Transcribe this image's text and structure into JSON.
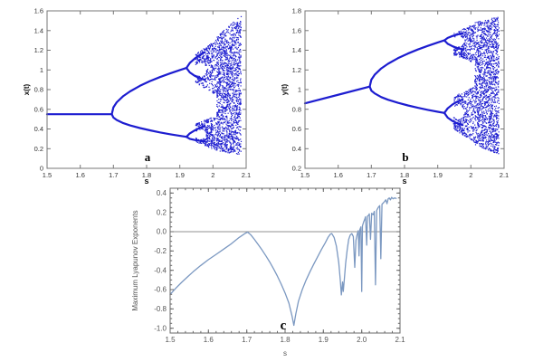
{
  "figure": {
    "background": "#ffffff",
    "description": "Bifurcation diagrams of x(t) and y(t) versus parameter s, and maximum Lyapunov exponents versus s"
  },
  "chart_data": [
    {
      "id": "a",
      "type": "bifurcation",
      "label": "a",
      "xlabel": "s",
      "ylabel": "x(t)",
      "x_range": [
        1.5,
        2.1
      ],
      "y_range": [
        0,
        1.6
      ],
      "xticks": [
        {
          "v": 1.5,
          "l": "1.5"
        },
        {
          "v": 1.6,
          "l": "1.6"
        },
        {
          "v": 1.7,
          "l": "1.7"
        },
        {
          "v": 1.8,
          "l": "1.8"
        },
        {
          "v": 1.9,
          "l": "1.9"
        },
        {
          "v": 2.0,
          "l": "2"
        },
        {
          "v": 2.1,
          "l": "2.1"
        }
      ],
      "yticks": [
        {
          "v": 0,
          "l": "0"
        },
        {
          "v": 0.2,
          "l": "0.2"
        },
        {
          "v": 0.4,
          "l": "0.4"
        },
        {
          "v": 0.6,
          "l": "0.6"
        },
        {
          "v": 0.8,
          "l": "0.8"
        },
        {
          "v": 1.0,
          "l": "1"
        },
        {
          "v": 1.2,
          "l": "1.2"
        },
        {
          "v": 1.4,
          "l": "1.4"
        },
        {
          "v": 1.6,
          "l": "1.6"
        }
      ],
      "color": "#1d1dd0",
      "frame_color": "#777777",
      "seed": 7,
      "branches": [
        [
          [
            1.5,
            0.55
          ],
          [
            1.695,
            0.55
          ]
        ],
        [
          [
            1.695,
            0.55
          ],
          [
            1.7,
            0.62
          ],
          [
            1.71,
            0.671
          ],
          [
            1.73,
            0.735
          ],
          [
            1.75,
            0.782
          ],
          [
            1.78,
            0.839
          ],
          [
            1.81,
            0.886
          ],
          [
            1.84,
            0.927
          ],
          [
            1.87,
            0.964
          ],
          [
            1.9,
            0.999
          ],
          [
            1.92,
            1.02
          ]
        ],
        [
          [
            1.695,
            0.55
          ],
          [
            1.7,
            0.516
          ],
          [
            1.71,
            0.491
          ],
          [
            1.73,
            0.459
          ],
          [
            1.75,
            0.436
          ],
          [
            1.78,
            0.409
          ],
          [
            1.81,
            0.386
          ],
          [
            1.84,
            0.365
          ],
          [
            1.87,
            0.347
          ],
          [
            1.9,
            0.33
          ],
          [
            1.92,
            0.32
          ]
        ],
        [
          [
            1.92,
            1.02
          ],
          [
            1.93,
            1.07
          ],
          [
            1.945,
            1.115
          ],
          [
            1.96,
            1.15
          ],
          [
            1.975,
            1.18
          ]
        ],
        [
          [
            1.92,
            1.02
          ],
          [
            1.93,
            0.975
          ],
          [
            1.945,
            0.94
          ],
          [
            1.96,
            0.915
          ],
          [
            1.975,
            0.9
          ]
        ],
        [
          [
            1.92,
            0.32
          ],
          [
            1.93,
            0.355
          ],
          [
            1.945,
            0.385
          ],
          [
            1.96,
            0.41
          ],
          [
            1.975,
            0.43
          ]
        ],
        [
          [
            1.92,
            0.32
          ],
          [
            1.93,
            0.3
          ],
          [
            1.945,
            0.288
          ],
          [
            1.96,
            0.28
          ],
          [
            1.975,
            0.272
          ]
        ]
      ],
      "chaos_bands": [
        {
          "s0": 1.948,
          "s1": 2.012,
          "bot0": 0.87,
          "bot1": 0.74,
          "top0": 1.16,
          "top1": 1.31,
          "n": 420
        },
        {
          "s0": 1.948,
          "s1": 2.012,
          "bot0": 0.265,
          "bot1": 0.18,
          "top0": 0.45,
          "top1": 0.54,
          "n": 380
        },
        {
          "s0": 2.012,
          "s1": 2.085,
          "bot0": 0.17,
          "bot1": 0.14,
          "top0": 1.34,
          "top1": 1.56,
          "n": 1500
        }
      ],
      "eyes": [
        {
          "cx": 1.963,
          "cy": 1.005,
          "rx": 0.017,
          "ry": 0.07
        },
        {
          "cx": 1.963,
          "cy": 0.345,
          "rx": 0.017,
          "ry": 0.05
        }
      ]
    },
    {
      "id": "b",
      "type": "bifurcation",
      "label": "b",
      "xlabel": "s",
      "ylabel": "y(t)",
      "x_range": [
        1.5,
        2.1
      ],
      "y_range": [
        0.2,
        1.8
      ],
      "xticks": [
        {
          "v": 1.5,
          "l": "1.5"
        },
        {
          "v": 1.6,
          "l": "1.6"
        },
        {
          "v": 1.7,
          "l": "1.7"
        },
        {
          "v": 1.8,
          "l": "1.8"
        },
        {
          "v": 1.9,
          "l": "1.9"
        },
        {
          "v": 2.0,
          "l": "2"
        },
        {
          "v": 2.1,
          "l": "2.1"
        }
      ],
      "yticks": [
        {
          "v": 0.2,
          "l": "0.2"
        },
        {
          "v": 0.4,
          "l": "0.4"
        },
        {
          "v": 0.6,
          "l": "0.6"
        },
        {
          "v": 0.8,
          "l": "0.8"
        },
        {
          "v": 1.0,
          "l": "1"
        },
        {
          "v": 1.2,
          "l": "1.2"
        },
        {
          "v": 1.4,
          "l": "1.4"
        },
        {
          "v": 1.6,
          "l": "1.6"
        },
        {
          "v": 1.8,
          "l": "1.8"
        }
      ],
      "color": "#1d1dd0",
      "frame_color": "#777777",
      "seed": 13,
      "branches": [
        [
          [
            1.5,
            0.86
          ],
          [
            1.695,
            1.03
          ]
        ],
        [
          [
            1.695,
            1.03
          ],
          [
            1.7,
            1.1
          ],
          [
            1.71,
            1.151
          ],
          [
            1.73,
            1.215
          ],
          [
            1.75,
            1.262
          ],
          [
            1.78,
            1.319
          ],
          [
            1.81,
            1.366
          ],
          [
            1.84,
            1.407
          ],
          [
            1.87,
            1.444
          ],
          [
            1.9,
            1.479
          ],
          [
            1.92,
            1.5
          ]
        ],
        [
          [
            1.695,
            1.03
          ],
          [
            1.7,
            0.99
          ],
          [
            1.71,
            0.961
          ],
          [
            1.73,
            0.924
          ],
          [
            1.75,
            0.897
          ],
          [
            1.78,
            0.866
          ],
          [
            1.81,
            0.839
          ],
          [
            1.84,
            0.815
          ],
          [
            1.87,
            0.794
          ],
          [
            1.9,
            0.775
          ],
          [
            1.92,
            0.763
          ]
        ],
        [
          [
            1.92,
            1.5
          ],
          [
            1.93,
            1.525
          ],
          [
            1.945,
            1.545
          ],
          [
            1.96,
            1.56
          ],
          [
            1.975,
            1.57
          ]
        ],
        [
          [
            1.92,
            1.5
          ],
          [
            1.93,
            1.465
          ],
          [
            1.945,
            1.44
          ],
          [
            1.96,
            1.42
          ],
          [
            1.975,
            1.41
          ]
        ],
        [
          [
            1.92,
            0.763
          ],
          [
            1.93,
            0.81
          ],
          [
            1.945,
            0.85
          ],
          [
            1.96,
            0.88
          ],
          [
            1.975,
            0.9
          ]
        ],
        [
          [
            1.92,
            0.763
          ],
          [
            1.93,
            0.715
          ],
          [
            1.945,
            0.68
          ],
          [
            1.96,
            0.655
          ],
          [
            1.975,
            0.64
          ]
        ]
      ],
      "chaos_bands": [
        {
          "s0": 1.948,
          "s1": 2.012,
          "bot0": 1.35,
          "bot1": 1.27,
          "top0": 1.57,
          "top1": 1.67,
          "n": 380
        },
        {
          "s0": 1.948,
          "s1": 2.012,
          "bot0": 0.6,
          "bot1": 0.46,
          "top0": 0.93,
          "top1": 1.03,
          "n": 420
        },
        {
          "s0": 2.012,
          "s1": 2.085,
          "bot0": 0.44,
          "bot1": 0.34,
          "top0": 1.68,
          "top1": 1.745,
          "n": 1500
        }
      ],
      "eyes": [
        {
          "cx": 1.963,
          "cy": 1.49,
          "rx": 0.017,
          "ry": 0.055
        },
        {
          "cx": 1.963,
          "cy": 0.77,
          "rx": 0.017,
          "ry": 0.075
        }
      ]
    },
    {
      "id": "c",
      "type": "line",
      "label": "c",
      "xlabel": "s",
      "ylabel": "Maximum Lyapunov Exponents",
      "x_range": [
        1.5,
        2.1
      ],
      "y_range": [
        -1.05,
        0.45
      ],
      "x_minor_step": 0.02,
      "y_minor_step": 0.05,
      "xticks": [
        {
          "v": 1.5,
          "l": "1.5"
        },
        {
          "v": 1.6,
          "l": "1.6"
        },
        {
          "v": 1.7,
          "l": "1.7"
        },
        {
          "v": 1.8,
          "l": "1.8"
        },
        {
          "v": 1.9,
          "l": "1.9"
        },
        {
          "v": 2.0,
          "l": "2.0"
        },
        {
          "v": 2.1,
          "l": "2.1"
        }
      ],
      "yticks": [
        {
          "v": 0.4,
          "l": "0.4"
        },
        {
          "v": 0.2,
          "l": "0.2"
        },
        {
          "v": 0.0,
          "l": "0.0"
        },
        {
          "v": -0.2,
          "l": "-0.2"
        },
        {
          "v": -0.4,
          "l": "-0.4"
        },
        {
          "v": -0.6,
          "l": "-0.6"
        },
        {
          "v": -0.8,
          "l": "-0.8"
        },
        {
          "v": -1.0,
          "l": "-1.0"
        }
      ],
      "color": "#7b98c1",
      "zero_line_color": "#909090",
      "frame_color": "#686868",
      "points": [
        [
          1.5,
          -0.65
        ],
        [
          1.515,
          -0.585
        ],
        [
          1.53,
          -0.525
        ],
        [
          1.545,
          -0.47
        ],
        [
          1.56,
          -0.415
        ],
        [
          1.58,
          -0.35
        ],
        [
          1.6,
          -0.29
        ],
        [
          1.62,
          -0.235
        ],
        [
          1.64,
          -0.18
        ],
        [
          1.66,
          -0.125
        ],
        [
          1.68,
          -0.06
        ],
        [
          1.695,
          -0.02
        ],
        [
          1.702,
          -0.005
        ],
        [
          1.71,
          -0.03
        ],
        [
          1.72,
          -0.08
        ],
        [
          1.73,
          -0.135
        ],
        [
          1.74,
          -0.19
        ],
        [
          1.75,
          -0.25
        ],
        [
          1.76,
          -0.315
        ],
        [
          1.77,
          -0.385
        ],
        [
          1.78,
          -0.46
        ],
        [
          1.79,
          -0.545
        ],
        [
          1.8,
          -0.635
        ],
        [
          1.81,
          -0.74
        ],
        [
          1.818,
          -0.87
        ],
        [
          1.823,
          -0.97
        ],
        [
          1.828,
          -0.85
        ],
        [
          1.835,
          -0.72
        ],
        [
          1.845,
          -0.6
        ],
        [
          1.855,
          -0.5
        ],
        [
          1.865,
          -0.415
        ],
        [
          1.875,
          -0.335
        ],
        [
          1.885,
          -0.26
        ],
        [
          1.895,
          -0.185
        ],
        [
          1.905,
          -0.115
        ],
        [
          1.912,
          -0.06
        ],
        [
          1.918,
          -0.025
        ],
        [
          1.922,
          -0.02
        ],
        [
          1.928,
          -0.06
        ],
        [
          1.934,
          -0.15
        ],
        [
          1.94,
          -0.32
        ],
        [
          1.944,
          -0.5
        ],
        [
          1.947,
          -0.655
        ],
        [
          1.95,
          -0.52
        ],
        [
          1.952,
          -0.62
        ],
        [
          1.955,
          -0.48
        ],
        [
          1.958,
          -0.33
        ],
        [
          1.962,
          -0.19
        ],
        [
          1.966,
          -0.08
        ],
        [
          1.97,
          -0.035
        ],
        [
          1.974,
          -0.02
        ],
        [
          1.978,
          -0.05
        ],
        [
          1.982,
          -0.37
        ],
        [
          1.985,
          -0.09
        ],
        [
          1.988,
          -0.03
        ],
        [
          1.991,
          0.01
        ],
        [
          1.993,
          -0.25
        ],
        [
          1.995,
          0.02
        ],
        [
          1.998,
          0.05
        ],
        [
          2.0,
          -0.62
        ],
        [
          2.002,
          0.06
        ],
        [
          2.005,
          0.1
        ],
        [
          2.008,
          0.13
        ],
        [
          2.01,
          0.155
        ],
        [
          2.013,
          -0.14
        ],
        [
          2.015,
          0.16
        ],
        [
          2.018,
          0.17
        ],
        [
          2.02,
          0.185
        ],
        [
          2.023,
          -0.08
        ],
        [
          2.026,
          0.19
        ],
        [
          2.03,
          0.175
        ],
        [
          2.033,
          0.21
        ],
        [
          2.036,
          -0.55
        ],
        [
          2.039,
          0.22
        ],
        [
          2.043,
          0.25
        ],
        [
          2.047,
          0.27
        ],
        [
          2.05,
          -0.28
        ],
        [
          2.053,
          0.285
        ],
        [
          2.057,
          0.3
        ],
        [
          2.06,
          0.315
        ],
        [
          2.063,
          0.33
        ],
        [
          2.066,
          0.29
        ],
        [
          2.069,
          0.34
        ],
        [
          2.072,
          0.35
        ],
        [
          2.075,
          0.33
        ],
        [
          2.078,
          0.355
        ],
        [
          2.082,
          0.34
        ],
        [
          2.086,
          0.35
        ],
        [
          2.09,
          0.345
        ]
      ]
    }
  ]
}
